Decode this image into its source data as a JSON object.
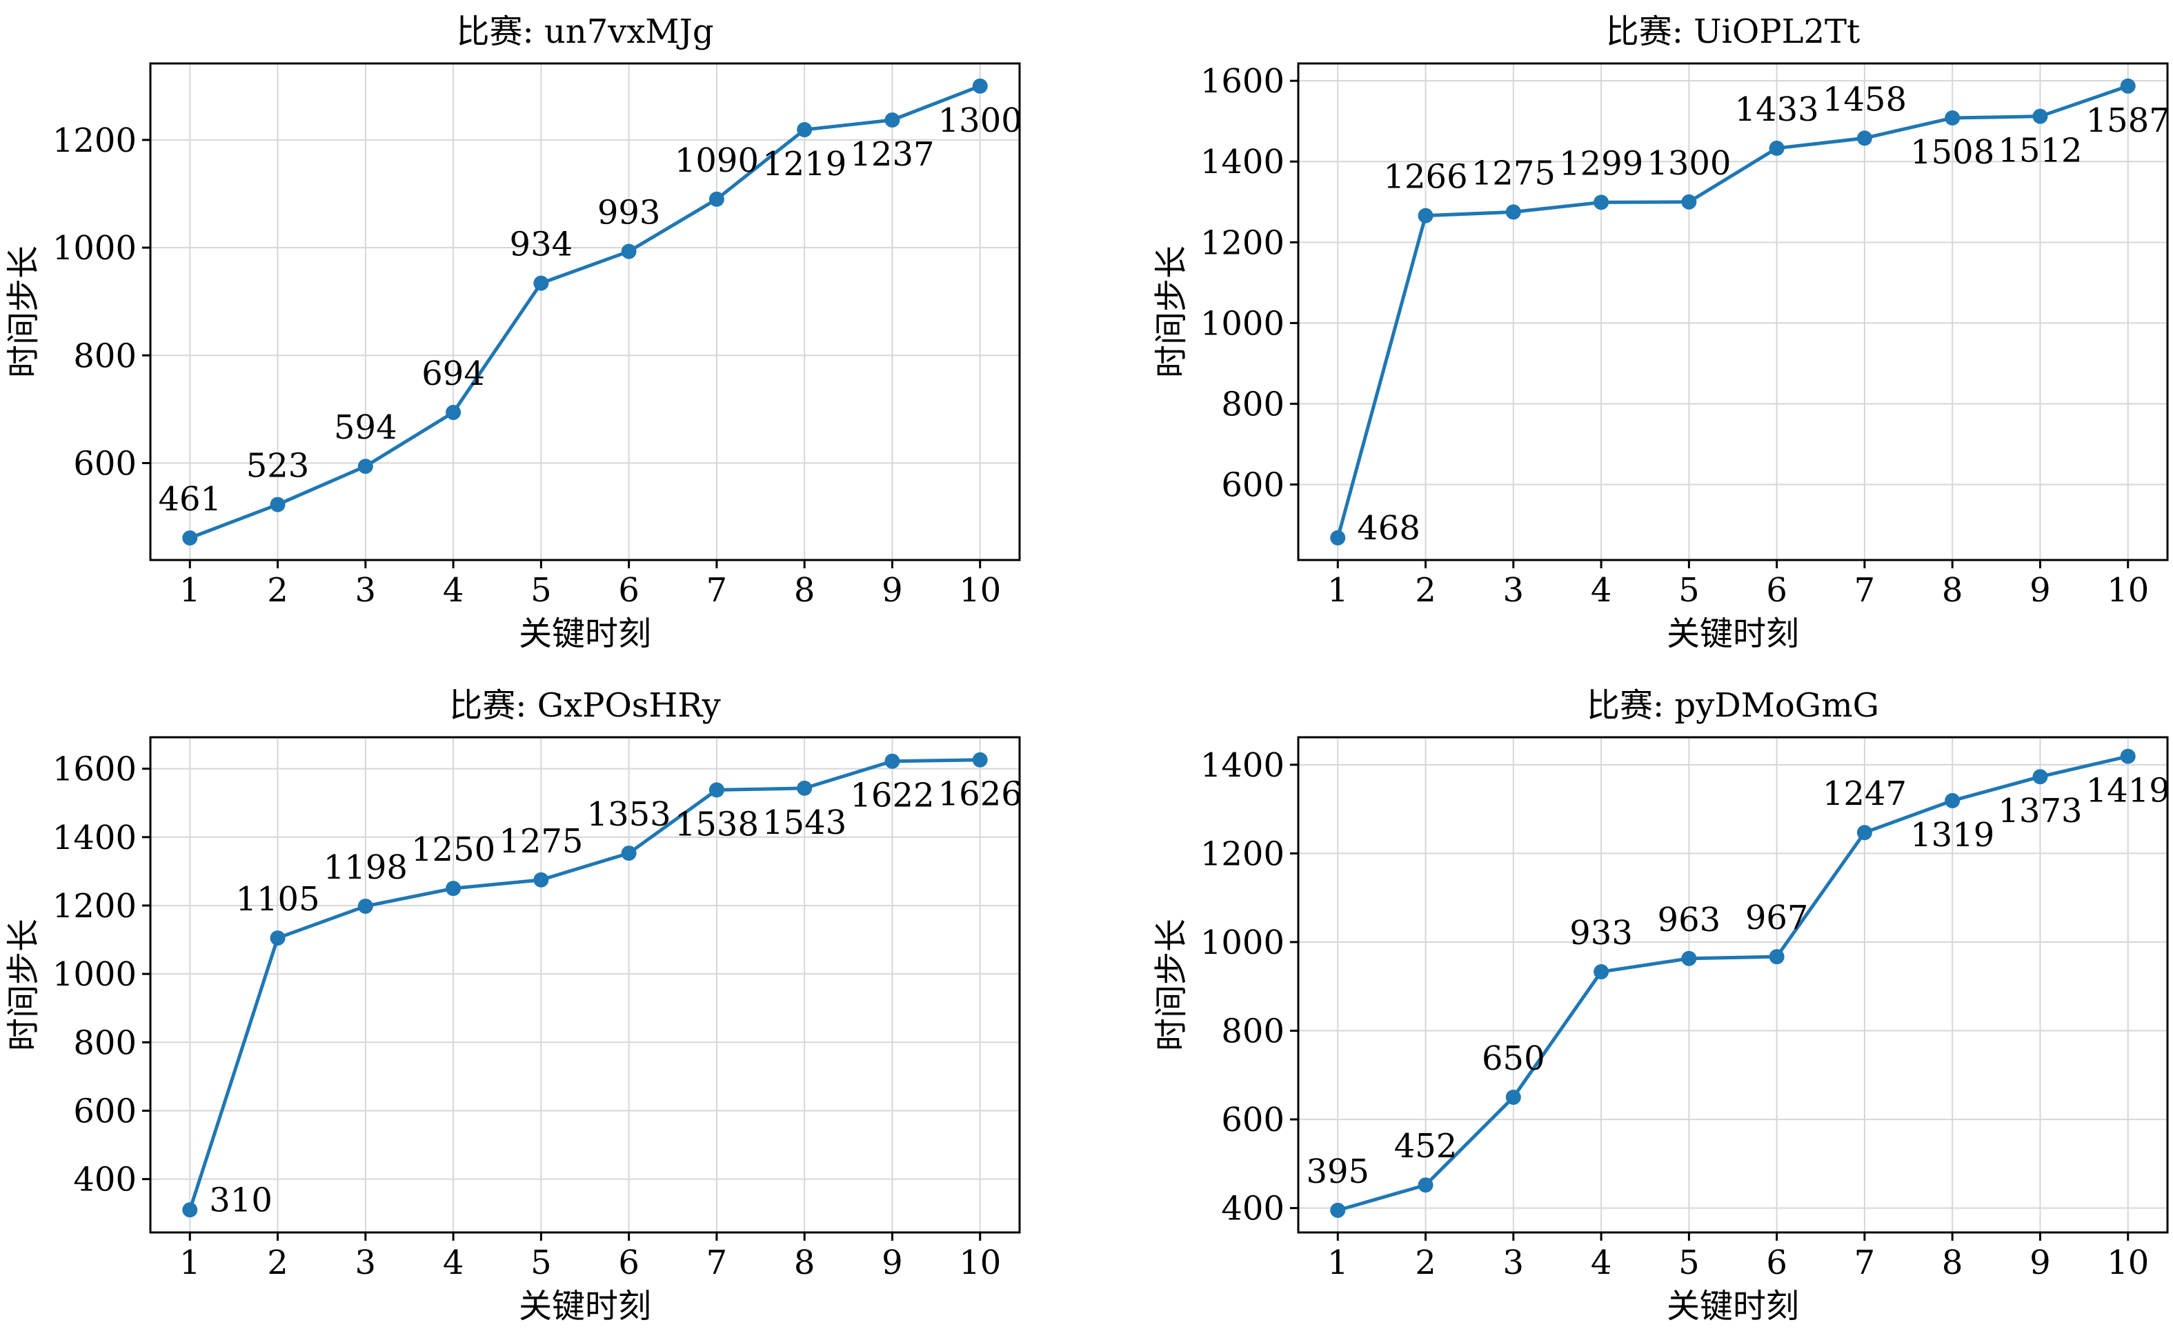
{
  "figure": {
    "colors": {
      "series": "#1f77b4",
      "grid": "#d6d6d6",
      "axis": "#000000"
    }
  },
  "chart_data": [
    {
      "type": "line",
      "title": "比赛: un7vxMJg",
      "xlabel": "关键时刻",
      "ylabel": "时间步长",
      "x": [
        1,
        2,
        3,
        4,
        5,
        6,
        7,
        8,
        9,
        10
      ],
      "values": [
        461,
        523,
        594,
        694,
        934,
        993,
        1090,
        1219,
        1237,
        1300
      ],
      "xlim": [
        0.55,
        10.45
      ],
      "ylim": [
        420,
        1342
      ],
      "yticks": [
        600,
        800,
        1000,
        1200
      ],
      "label_pos": [
        "above",
        "above",
        "above",
        "above",
        "above",
        "above",
        "above",
        "below",
        "below",
        "below"
      ],
      "grid": true,
      "marker": "circle"
    },
    {
      "type": "line",
      "title": "比赛: UiOPL2Tt",
      "xlabel": "关键时刻",
      "ylabel": "时间步长",
      "x": [
        1,
        2,
        3,
        4,
        5,
        6,
        7,
        8,
        9,
        10
      ],
      "values": [
        468,
        1266,
        1275,
        1299,
        1300,
        1433,
        1458,
        1508,
        1512,
        1587
      ],
      "xlim": [
        0.55,
        10.45
      ],
      "ylim": [
        413,
        1643
      ],
      "yticks": [
        600,
        800,
        1000,
        1200,
        1400,
        1600
      ],
      "label_pos": [
        "right",
        "above",
        "above",
        "above",
        "above",
        "above",
        "above",
        "below",
        "below",
        "below"
      ],
      "grid": true,
      "marker": "circle"
    },
    {
      "type": "line",
      "title": "比赛: GxPOsHRy",
      "xlabel": "关键时刻",
      "ylabel": "时间步长",
      "x": [
        1,
        2,
        3,
        4,
        5,
        6,
        7,
        8,
        9,
        10
      ],
      "values": [
        310,
        1105,
        1198,
        1250,
        1275,
        1353,
        1538,
        1543,
        1622,
        1626
      ],
      "xlim": [
        0.55,
        10.45
      ],
      "ylim": [
        244,
        1692
      ],
      "yticks": [
        400,
        600,
        800,
        1000,
        1200,
        1400,
        1600
      ],
      "label_pos": [
        "right",
        "above",
        "above",
        "above",
        "above",
        "above",
        "below",
        "below",
        "below",
        "below"
      ],
      "grid": true,
      "marker": "circle"
    },
    {
      "type": "line",
      "title": "比赛: pyDMoGmG",
      "xlabel": "关键时刻",
      "ylabel": "时间步长",
      "x": [
        1,
        2,
        3,
        4,
        5,
        6,
        7,
        8,
        9,
        10
      ],
      "values": [
        395,
        452,
        650,
        933,
        963,
        967,
        1247,
        1319,
        1373,
        1419
      ],
      "xlim": [
        0.55,
        10.45
      ],
      "ylim": [
        345,
        1462
      ],
      "yticks": [
        400,
        600,
        800,
        1000,
        1200,
        1400
      ],
      "label_pos": [
        "above",
        "above",
        "above",
        "above",
        "above",
        "above",
        "above",
        "below",
        "below",
        "below"
      ],
      "grid": true,
      "marker": "circle"
    }
  ]
}
